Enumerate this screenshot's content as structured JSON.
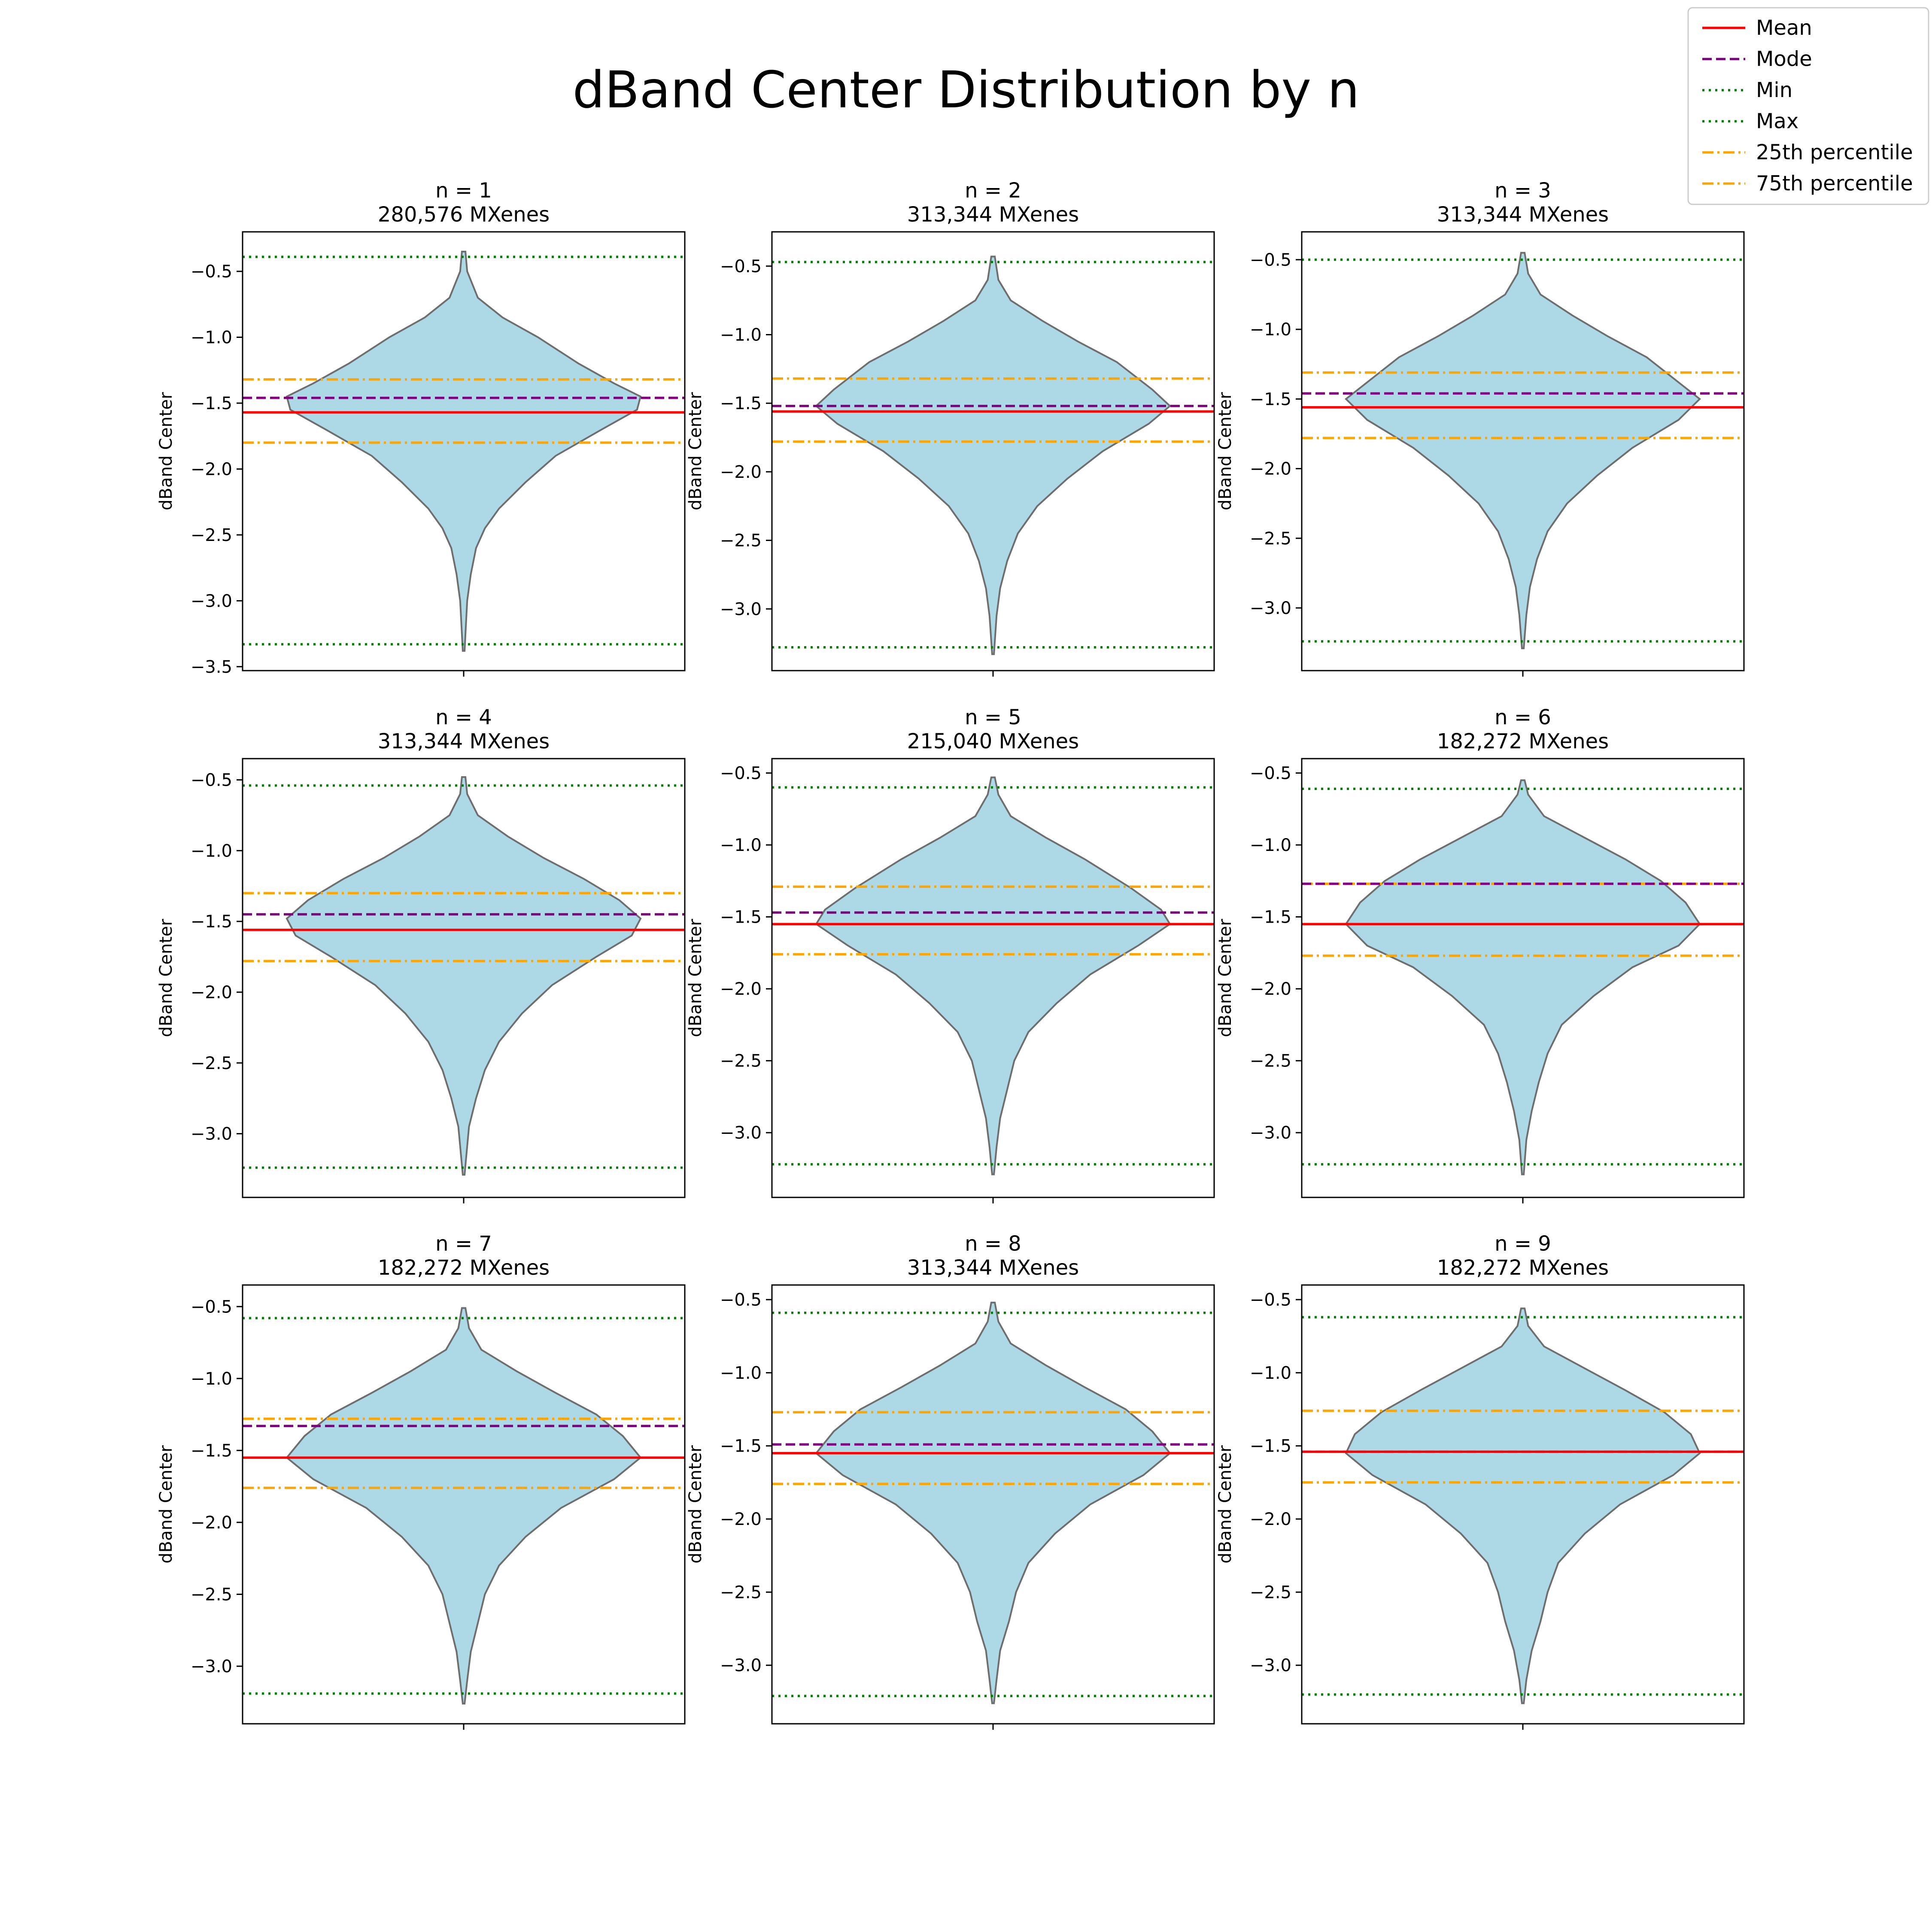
{
  "figure": {
    "title": "dBand Center Distribution by n"
  },
  "legend": {
    "placement": "top-right",
    "entries": [
      {
        "key": "mean",
        "label": "Mean",
        "color": "#ff0000",
        "dash": "solid"
      },
      {
        "key": "mode",
        "label": "Mode",
        "color": "#800080",
        "dash": "dashed"
      },
      {
        "key": "min",
        "label": "Min",
        "color": "#008000",
        "dash": "dotted"
      },
      {
        "key": "max",
        "label": "Max",
        "color": "#008000",
        "dash": "dotted"
      },
      {
        "key": "p25",
        "label": "25th percentile",
        "color": "#ffa500",
        "dash": "dashdot"
      },
      {
        "key": "p75",
        "label": "75th percentile",
        "color": "#ffa500",
        "dash": "dashdot"
      }
    ]
  },
  "colors": {
    "violin_fill": "#add8e6",
    "violin_edge": "#6e6e6e"
  },
  "chart_data": [
    {
      "type": "violin",
      "title": "n = 1",
      "subtitle": "280,576 MXenes",
      "ylabel": "dBand Center",
      "ylim": [
        -3.53,
        -0.2
      ],
      "yticks": [
        -0.5,
        -1.0,
        -1.5,
        -2.0,
        -2.5,
        -3.0,
        -3.5
      ],
      "stats": {
        "mean": -1.57,
        "mode": -1.46,
        "min": -3.33,
        "max": -0.39,
        "p25": -1.8,
        "p75": -1.32
      },
      "violin": {
        "ymin": -3.38,
        "ymax": -0.35,
        "profile": [
          [
            -0.35,
            0.01
          ],
          [
            -0.5,
            0.02
          ],
          [
            -0.7,
            0.08
          ],
          [
            -0.85,
            0.22
          ],
          [
            -1.0,
            0.42
          ],
          [
            -1.2,
            0.65
          ],
          [
            -1.35,
            0.85
          ],
          [
            -1.45,
            1.0
          ],
          [
            -1.55,
            0.98
          ],
          [
            -1.7,
            0.78
          ],
          [
            -1.9,
            0.52
          ],
          [
            -2.1,
            0.35
          ],
          [
            -2.3,
            0.2
          ],
          [
            -2.45,
            0.12
          ],
          [
            -2.6,
            0.07
          ],
          [
            -2.8,
            0.04
          ],
          [
            -3.0,
            0.02
          ],
          [
            -3.38,
            0.005
          ]
        ]
      }
    },
    {
      "type": "violin",
      "title": "n = 2",
      "subtitle": "313,344 MXenes",
      "ylabel": "dBand Center",
      "ylim": [
        -3.45,
        -0.25
      ],
      "yticks": [
        -0.5,
        -1.0,
        -1.5,
        -2.0,
        -2.5,
        -3.0
      ],
      "stats": {
        "mean": -1.56,
        "mode": -1.52,
        "min": -3.28,
        "max": -0.47,
        "p25": -1.78,
        "p75": -1.32
      },
      "violin": {
        "ymin": -3.33,
        "ymax": -0.43,
        "profile": [
          [
            -0.43,
            0.01
          ],
          [
            -0.6,
            0.03
          ],
          [
            -0.75,
            0.1
          ],
          [
            -0.9,
            0.28
          ],
          [
            -1.05,
            0.48
          ],
          [
            -1.2,
            0.7
          ],
          [
            -1.4,
            0.9
          ],
          [
            -1.52,
            1.0
          ],
          [
            -1.65,
            0.88
          ],
          [
            -1.85,
            0.62
          ],
          [
            -2.05,
            0.42
          ],
          [
            -2.25,
            0.25
          ],
          [
            -2.45,
            0.14
          ],
          [
            -2.65,
            0.08
          ],
          [
            -2.85,
            0.04
          ],
          [
            -3.05,
            0.02
          ],
          [
            -3.33,
            0.005
          ]
        ]
      }
    },
    {
      "type": "violin",
      "title": "n = 3",
      "subtitle": "313,344 MXenes",
      "ylabel": "dBand Center",
      "ylim": [
        -3.45,
        -0.3
      ],
      "yticks": [
        -0.5,
        -1.0,
        -1.5,
        -2.0,
        -2.5,
        -3.0
      ],
      "stats": {
        "mean": -1.56,
        "mode": -1.46,
        "min": -3.24,
        "max": -0.5,
        "p25": -1.78,
        "p75": -1.31
      },
      "violin": {
        "ymin": -3.29,
        "ymax": -0.45,
        "profile": [
          [
            -0.45,
            0.01
          ],
          [
            -0.6,
            0.03
          ],
          [
            -0.75,
            0.1
          ],
          [
            -0.9,
            0.28
          ],
          [
            -1.05,
            0.48
          ],
          [
            -1.2,
            0.7
          ],
          [
            -1.4,
            0.9
          ],
          [
            -1.5,
            1.0
          ],
          [
            -1.65,
            0.88
          ],
          [
            -1.85,
            0.62
          ],
          [
            -2.05,
            0.42
          ],
          [
            -2.25,
            0.25
          ],
          [
            -2.45,
            0.14
          ],
          [
            -2.65,
            0.08
          ],
          [
            -2.85,
            0.04
          ],
          [
            -3.05,
            0.02
          ],
          [
            -3.29,
            0.005
          ]
        ]
      }
    },
    {
      "type": "violin",
      "title": "n = 4",
      "subtitle": "313,344 MXenes",
      "ylabel": "dBand Center",
      "ylim": [
        -3.45,
        -0.35
      ],
      "yticks": [
        -0.5,
        -1.0,
        -1.5,
        -2.0,
        -2.5,
        -3.0
      ],
      "stats": {
        "mean": -1.56,
        "mode": -1.45,
        "min": -3.24,
        "max": -0.54,
        "p25": -1.78,
        "p75": -1.3
      },
      "violin": {
        "ymin": -3.29,
        "ymax": -0.48,
        "profile": [
          [
            -0.48,
            0.01
          ],
          [
            -0.6,
            0.02
          ],
          [
            -0.75,
            0.08
          ],
          [
            -0.9,
            0.25
          ],
          [
            -1.05,
            0.45
          ],
          [
            -1.2,
            0.68
          ],
          [
            -1.35,
            0.88
          ],
          [
            -1.48,
            1.0
          ],
          [
            -1.6,
            0.95
          ],
          [
            -1.75,
            0.75
          ],
          [
            -1.95,
            0.5
          ],
          [
            -2.15,
            0.33
          ],
          [
            -2.35,
            0.2
          ],
          [
            -2.55,
            0.12
          ],
          [
            -2.75,
            0.07
          ],
          [
            -2.95,
            0.03
          ],
          [
            -3.29,
            0.005
          ]
        ]
      }
    },
    {
      "type": "violin",
      "title": "n = 5",
      "subtitle": "215,040 MXenes",
      "ylabel": "dBand Center",
      "ylim": [
        -3.45,
        -0.4
      ],
      "yticks": [
        -0.5,
        -1.0,
        -1.5,
        -2.0,
        -2.5,
        -3.0
      ],
      "stats": {
        "mean": -1.55,
        "mode": -1.47,
        "min": -3.22,
        "max": -0.6,
        "p25": -1.76,
        "p75": -1.29
      },
      "violin": {
        "ymin": -3.29,
        "ymax": -0.53,
        "profile": [
          [
            -0.53,
            0.01
          ],
          [
            -0.65,
            0.03
          ],
          [
            -0.8,
            0.1
          ],
          [
            -0.95,
            0.3
          ],
          [
            -1.1,
            0.52
          ],
          [
            -1.3,
            0.78
          ],
          [
            -1.45,
            0.95
          ],
          [
            -1.55,
            1.0
          ],
          [
            -1.7,
            0.82
          ],
          [
            -1.9,
            0.55
          ],
          [
            -2.1,
            0.36
          ],
          [
            -2.3,
            0.2
          ],
          [
            -2.5,
            0.12
          ],
          [
            -2.7,
            0.08
          ],
          [
            -2.9,
            0.04
          ],
          [
            -3.1,
            0.02
          ],
          [
            -3.29,
            0.005
          ]
        ]
      }
    },
    {
      "type": "violin",
      "title": "n = 6",
      "subtitle": "182,272 MXenes",
      "ylabel": "dBand Center",
      "ylim": [
        -3.45,
        -0.4
      ],
      "yticks": [
        -0.5,
        -1.0,
        -1.5,
        -2.0,
        -2.5,
        -3.0
      ],
      "stats": {
        "mean": -1.55,
        "mode": -1.27,
        "min": -3.22,
        "max": -0.61,
        "p25": -1.77,
        "p75": -1.27
      },
      "violin": {
        "ymin": -3.29,
        "ymax": -0.55,
        "profile": [
          [
            -0.55,
            0.01
          ],
          [
            -0.65,
            0.03
          ],
          [
            -0.8,
            0.12
          ],
          [
            -0.95,
            0.35
          ],
          [
            -1.1,
            0.58
          ],
          [
            -1.25,
            0.78
          ],
          [
            -1.4,
            0.92
          ],
          [
            -1.55,
            1.0
          ],
          [
            -1.7,
            0.88
          ],
          [
            -1.85,
            0.62
          ],
          [
            -2.05,
            0.4
          ],
          [
            -2.25,
            0.22
          ],
          [
            -2.45,
            0.14
          ],
          [
            -2.65,
            0.09
          ],
          [
            -2.85,
            0.05
          ],
          [
            -3.05,
            0.02
          ],
          [
            -3.29,
            0.005
          ]
        ]
      }
    },
    {
      "type": "violin",
      "title": "n = 7",
      "subtitle": "182,272 MXenes",
      "ylabel": "dBand Center",
      "ylim": [
        -3.4,
        -0.35
      ],
      "yticks": [
        -0.5,
        -1.0,
        -1.5,
        -2.0,
        -2.5,
        -3.0
      ],
      "stats": {
        "mean": -1.55,
        "mode": -1.33,
        "min": -3.19,
        "max": -0.58,
        "p25": -1.76,
        "p75": -1.28
      },
      "violin": {
        "ymin": -3.26,
        "ymax": -0.51,
        "profile": [
          [
            -0.51,
            0.01
          ],
          [
            -0.65,
            0.03
          ],
          [
            -0.8,
            0.1
          ],
          [
            -0.95,
            0.3
          ],
          [
            -1.1,
            0.52
          ],
          [
            -1.25,
            0.75
          ],
          [
            -1.4,
            0.9
          ],
          [
            -1.55,
            1.0
          ],
          [
            -1.7,
            0.85
          ],
          [
            -1.9,
            0.55
          ],
          [
            -2.1,
            0.35
          ],
          [
            -2.3,
            0.2
          ],
          [
            -2.5,
            0.12
          ],
          [
            -2.7,
            0.08
          ],
          [
            -2.9,
            0.04
          ],
          [
            -3.1,
            0.02
          ],
          [
            -3.26,
            0.005
          ]
        ]
      }
    },
    {
      "type": "violin",
      "title": "n = 8",
      "subtitle": "313,344 MXenes",
      "ylabel": "dBand Center",
      "ylim": [
        -3.4,
        -0.4
      ],
      "yticks": [
        -0.5,
        -1.0,
        -1.5,
        -2.0,
        -2.5,
        -3.0
      ],
      "stats": {
        "mean": -1.55,
        "mode": -1.49,
        "min": -3.21,
        "max": -0.59,
        "p25": -1.76,
        "p75": -1.27
      },
      "violin": {
        "ymin": -3.26,
        "ymax": -0.52,
        "profile": [
          [
            -0.52,
            0.01
          ],
          [
            -0.65,
            0.03
          ],
          [
            -0.8,
            0.1
          ],
          [
            -0.95,
            0.3
          ],
          [
            -1.1,
            0.52
          ],
          [
            -1.25,
            0.75
          ],
          [
            -1.4,
            0.9
          ],
          [
            -1.55,
            1.0
          ],
          [
            -1.7,
            0.85
          ],
          [
            -1.9,
            0.55
          ],
          [
            -2.1,
            0.35
          ],
          [
            -2.3,
            0.2
          ],
          [
            -2.5,
            0.13
          ],
          [
            -2.7,
            0.09
          ],
          [
            -2.9,
            0.04
          ],
          [
            -3.1,
            0.02
          ],
          [
            -3.26,
            0.005
          ]
        ]
      }
    },
    {
      "type": "violin",
      "title": "n = 9",
      "subtitle": "182,272 MXenes",
      "ylabel": "dBand Center",
      "ylim": [
        -3.4,
        -0.4
      ],
      "yticks": [
        -0.5,
        -1.0,
        -1.5,
        -2.0,
        -2.5,
        -3.0
      ],
      "stats": {
        "mean": -1.54,
        "mode": -1.54,
        "min": -3.2,
        "max": -0.62,
        "p25": -1.75,
        "p75": -1.26
      },
      "violin": {
        "ymin": -3.26,
        "ymax": -0.56,
        "profile": [
          [
            -0.56,
            0.01
          ],
          [
            -0.68,
            0.03
          ],
          [
            -0.82,
            0.12
          ],
          [
            -0.97,
            0.35
          ],
          [
            -1.12,
            0.58
          ],
          [
            -1.27,
            0.8
          ],
          [
            -1.42,
            0.95
          ],
          [
            -1.55,
            1.0
          ],
          [
            -1.7,
            0.85
          ],
          [
            -1.9,
            0.55
          ],
          [
            -2.1,
            0.35
          ],
          [
            -2.3,
            0.2
          ],
          [
            -2.5,
            0.14
          ],
          [
            -2.7,
            0.1
          ],
          [
            -2.9,
            0.05
          ],
          [
            -3.1,
            0.02
          ],
          [
            -3.26,
            0.005
          ]
        ]
      }
    }
  ]
}
